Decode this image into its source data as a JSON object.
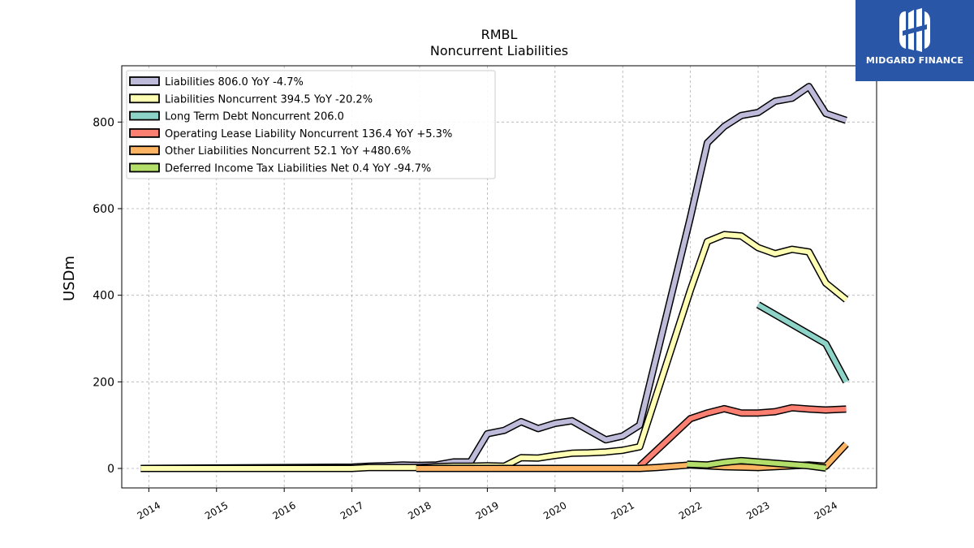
{
  "chart_data": {
    "type": "line",
    "title": "RMBL",
    "subtitle": "Noncurrent  Liabilities",
    "ylabel": "USDm",
    "xlabel": "",
    "xlim": [
      2013.6,
      2024.75
    ],
    "ylim": [
      -45,
      930
    ],
    "yticks": [
      0,
      200,
      400,
      600,
      800
    ],
    "xticks": [
      "2014",
      "2015",
      "2016",
      "2017",
      "2018",
      "2019",
      "2020",
      "2021",
      "2022",
      "2023",
      "2024"
    ],
    "grid": true,
    "legend_position": "top-left",
    "series": [
      {
        "name": "Liabilities  806.0 YoY -4.7%",
        "color": "#bebada",
        "points": [
          [
            2013.88,
            0
          ],
          [
            2017.0,
            3
          ],
          [
            2017.25,
            5
          ],
          [
            2017.5,
            6
          ],
          [
            2017.75,
            8
          ],
          [
            2018.0,
            7
          ],
          [
            2018.25,
            8
          ],
          [
            2018.5,
            15
          ],
          [
            2018.75,
            15
          ],
          [
            2019.0,
            80
          ],
          [
            2019.25,
            88
          ],
          [
            2019.5,
            108
          ],
          [
            2019.75,
            92
          ],
          [
            2020.0,
            104
          ],
          [
            2020.25,
            110
          ],
          [
            2020.5,
            88
          ],
          [
            2020.75,
            66
          ],
          [
            2021.0,
            75
          ],
          [
            2021.25,
            100
          ],
          [
            2022.0,
            580
          ],
          [
            2022.25,
            752
          ],
          [
            2022.5,
            790
          ],
          [
            2022.75,
            815
          ],
          [
            2023.0,
            822
          ],
          [
            2023.25,
            848
          ],
          [
            2023.5,
            855
          ],
          [
            2023.75,
            882
          ],
          [
            2024.0,
            820
          ],
          [
            2024.3,
            804
          ]
        ]
      },
      {
        "name": "Liabilities Noncurrent  394.5 YoY -20.2%",
        "color": "#ffffb3",
        "points": [
          [
            2013.88,
            0
          ],
          [
            2017.0,
            0
          ],
          [
            2017.25,
            2
          ],
          [
            2017.5,
            2
          ],
          [
            2017.75,
            2
          ],
          [
            2018.0,
            2
          ],
          [
            2018.25,
            4
          ],
          [
            2018.5,
            5
          ],
          [
            2018.75,
            5
          ],
          [
            2019.0,
            6
          ],
          [
            2019.25,
            5
          ],
          [
            2019.5,
            25
          ],
          [
            2019.75,
            24
          ],
          [
            2020.0,
            30
          ],
          [
            2020.25,
            35
          ],
          [
            2020.5,
            36
          ],
          [
            2020.75,
            38
          ],
          [
            2021.0,
            42
          ],
          [
            2021.25,
            50
          ],
          [
            2022.0,
            412
          ],
          [
            2022.25,
            524
          ],
          [
            2022.5,
            540
          ],
          [
            2022.75,
            537
          ],
          [
            2023.0,
            510
          ],
          [
            2023.25,
            496
          ],
          [
            2023.5,
            506
          ],
          [
            2023.75,
            500
          ],
          [
            2024.0,
            428
          ],
          [
            2024.3,
            390
          ]
        ]
      },
      {
        "name": "Long Term Debt Noncurrent  206.0",
        "color": "#8dd3c7",
        "points": [
          [
            2023.0,
            378
          ],
          [
            2024.0,
            288
          ],
          [
            2024.3,
            200
          ]
        ]
      },
      {
        "name": "Operating Lease Liability Noncurrent  136.4 YoY +5.3%",
        "color": "#fb8072",
        "points": [
          [
            2021.25,
            5
          ],
          [
            2022.0,
            115
          ],
          [
            2022.25,
            128
          ],
          [
            2022.5,
            138
          ],
          [
            2022.75,
            128
          ],
          [
            2023.0,
            128
          ],
          [
            2023.25,
            131
          ],
          [
            2023.5,
            140
          ],
          [
            2023.75,
            137
          ],
          [
            2024.0,
            135
          ],
          [
            2024.3,
            137
          ]
        ]
      },
      {
        "name": "Other Liabilities Noncurrent  52.1 YoY +480.6%",
        "color": "#fdb462",
        "points": [
          [
            2017.95,
            0
          ],
          [
            2018.5,
            0
          ],
          [
            2019.0,
            0
          ],
          [
            2019.5,
            0
          ],
          [
            2020.0,
            0
          ],
          [
            2020.5,
            0
          ],
          [
            2021.0,
            0
          ],
          [
            2021.25,
            0
          ],
          [
            2021.5,
            2
          ],
          [
            2022.0,
            8
          ],
          [
            2022.5,
            4
          ],
          [
            2023.0,
            2
          ],
          [
            2023.5,
            6
          ],
          [
            2023.75,
            8
          ],
          [
            2024.0,
            5
          ],
          [
            2024.3,
            56
          ]
        ]
      },
      {
        "name": "Deferred Income Tax Liabilities Net  0.4 YoY -94.7%",
        "color": "#b3de69",
        "points": [
          [
            2021.95,
            10
          ],
          [
            2022.25,
            8
          ],
          [
            2022.5,
            14
          ],
          [
            2022.75,
            18
          ],
          [
            2023.0,
            15
          ],
          [
            2023.25,
            12
          ],
          [
            2023.5,
            9
          ],
          [
            2023.75,
            6
          ],
          [
            2024.0,
            1
          ]
        ]
      }
    ]
  },
  "logo": {
    "name": "MIDGARD FINANCE"
  }
}
